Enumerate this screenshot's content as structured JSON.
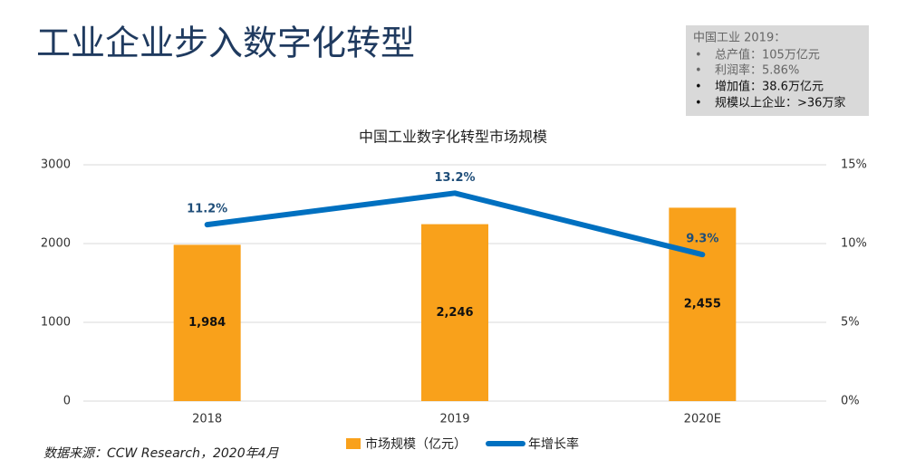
{
  "slide": {
    "title": "工业企业步入数字化转型",
    "info_box": {
      "heading": "中国工业 2019：",
      "items": [
        "总产值：105万亿元",
        "利润率：5.86%",
        "增加值：38.6万亿元",
        "规模以上企业：>36万家"
      ]
    },
    "source": "数据来源：CCW Research，2020年4月"
  },
  "chart_data": {
    "type": "bar",
    "title": "中国工业数字化转型市场规模",
    "categories": [
      "2018",
      "2019",
      "2020E"
    ],
    "series": [
      {
        "name": "市场规模（亿元）",
        "type": "bar",
        "color": "#f9a11b",
        "values": [
          1984,
          2246,
          2455
        ],
        "value_labels": [
          "1,984",
          "2,246",
          "2,455"
        ]
      },
      {
        "name": "年增长率",
        "type": "line",
        "axis": "y2",
        "color": "#0070c0",
        "values": [
          11.2,
          13.2,
          9.3
        ],
        "value_labels": [
          "11.2%",
          "13.2%",
          "9.3%"
        ]
      }
    ],
    "ylim": [
      0,
      3000
    ],
    "yticks": [
      0,
      1000,
      2000,
      3000
    ],
    "y2lim": [
      0,
      15
    ],
    "y2ticks": [
      {
        "value": 0,
        "label": "0%"
      },
      {
        "value": 5,
        "label": "5%"
      },
      {
        "value": 10,
        "label": "10%"
      },
      {
        "value": 15,
        "label": "15%"
      }
    ],
    "grid": true,
    "legend": "bottom"
  }
}
